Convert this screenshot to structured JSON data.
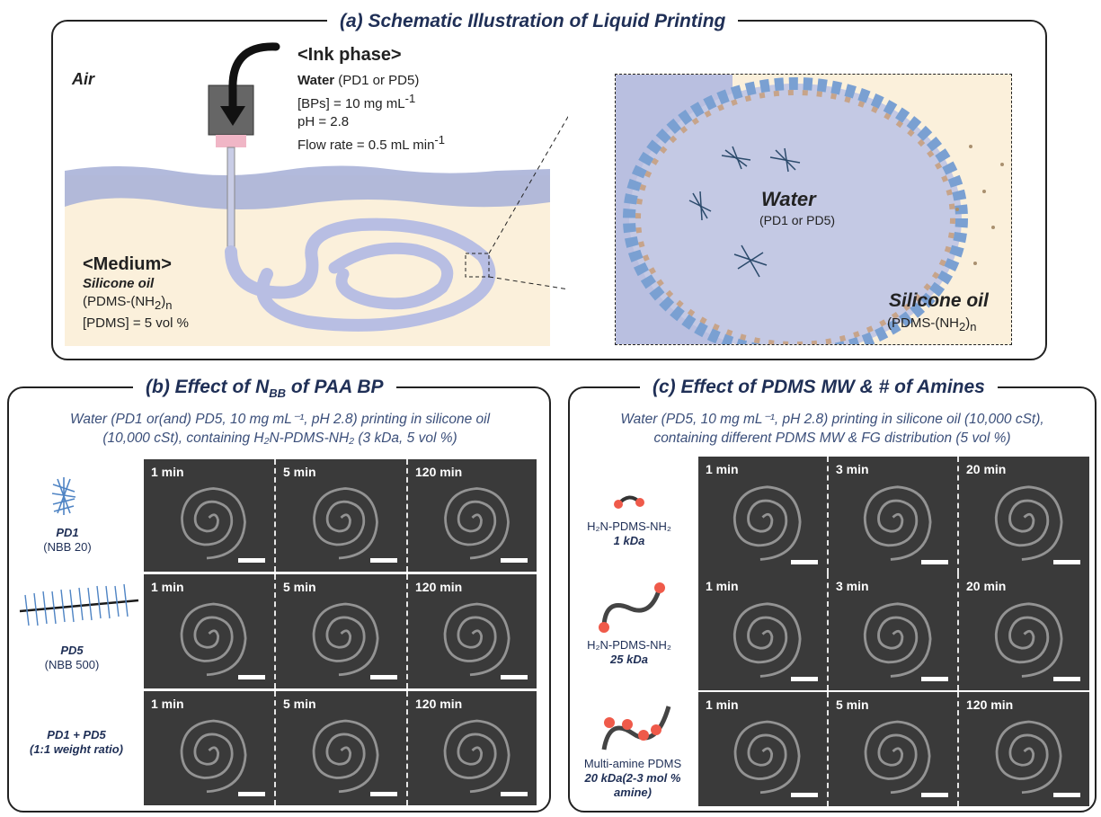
{
  "panel_a": {
    "title": "(a) Schematic Illustration of Liquid Printing",
    "air": "Air",
    "ink_heading": "<Ink phase>",
    "ink_water": "Water",
    "ink_water_detail": "(PD1 or PD5)",
    "ink_bps": "[BPs] = 10 mg mL",
    "ink_bps_sup": "-1",
    "ink_ph": "pH = 2.8",
    "ink_flow": "Flow rate = 0.5 mL min",
    "ink_flow_sup": "-1",
    "medium_heading": "<Medium>",
    "medium_oil": "Silicone oil",
    "medium_formula": "(PDMS-(NH",
    "medium_formula_sub": "2",
    "medium_formula_end": ")",
    "medium_formula_n": "n",
    "medium_conc": "[PDMS] = 5 vol %",
    "zoom_water": "Water",
    "zoom_water_detail": "(PD1 or PD5)",
    "zoom_oil": "Silicone oil",
    "zoom_formula": "(PDMS-(NH",
    "zoom_formula_sub": "2",
    "zoom_formula_end": ")",
    "zoom_formula_n": "n"
  },
  "panel_b": {
    "title": "(b) Effect of N",
    "title_sub": "BB",
    "title_end": " of PAA BP",
    "desc_line1": "Water (PD1 or(and) PD5, 10 mg mL⁻¹, pH 2.8) printing in silicone oil",
    "desc_line2": "(10,000 cSt), containing H₂N-PDMS-NH₂ (3 kDa, 5 vol %)",
    "rows": [
      {
        "name": "PD1",
        "detail": "(NBB 20)",
        "times": [
          "1 min",
          "5 min",
          "120 min"
        ]
      },
      {
        "name": "PD5",
        "detail": "(NBB 500)",
        "times": [
          "1 min",
          "5 min",
          "120 min"
        ]
      },
      {
        "name": "PD1 + PD5",
        "detail": "(1:1 weight ratio)",
        "times": [
          "1 min",
          "5 min",
          "120 min"
        ]
      }
    ]
  },
  "panel_c": {
    "title": "(c) Effect of PDMS MW & # of Amines",
    "desc_line1": "Water (PD5, 10 mg mL⁻¹, pH 2.8) printing in silicone oil (10,000 cSt),",
    "desc_line2": "containing different PDMS MW & FG distribution (5 vol %)",
    "rows": [
      {
        "name": "H₂N-PDMS-NH₂",
        "detail": "1 kDa",
        "times": [
          "1 min",
          "3 min",
          "20 min"
        ]
      },
      {
        "name": "H₂N-PDMS-NH₂",
        "detail": "25 kDa",
        "times": [
          "1 min",
          "3 min",
          "20 min"
        ]
      },
      {
        "name": "Multi-amine PDMS",
        "detail": "20 kDa(2-3 mol %",
        "detail2": "amine)",
        "times": [
          "1 min",
          "5 min",
          "120 min"
        ]
      }
    ]
  },
  "colors": {
    "accent": "#1f2f56",
    "water": "#b9bfe0",
    "oil": "#fbf0db",
    "brush": "#4f84c4",
    "amine": "#ef5a4a"
  }
}
